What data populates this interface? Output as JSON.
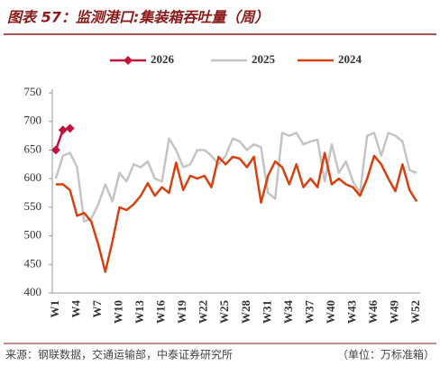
{
  "chart_data": {
    "type": "line",
    "title": "图表 57：监测港口:集装箱吞吐量（周）",
    "source": "来源：钢联数据，交通运输部，中泰证券研究所",
    "unit_note": "（单位：万标准箱）",
    "categories": [
      "W1",
      null,
      null,
      "W4",
      null,
      null,
      "W7",
      null,
      null,
      "W10",
      null,
      null,
      "W13",
      null,
      null,
      "W16",
      null,
      null,
      "W19",
      null,
      null,
      "W22",
      null,
      null,
      "W25",
      null,
      null,
      "W28",
      null,
      null,
      "W31",
      null,
      null,
      "W34",
      null,
      null,
      "W37",
      null,
      null,
      "W40",
      null,
      null,
      "W43",
      null,
      null,
      "W46",
      null,
      null,
      "W49",
      null,
      null,
      "W52"
    ],
    "series": [
      {
        "name": "2026",
        "color": "#c0143c",
        "marker": "diamond",
        "values": [
          650,
          685,
          688,
          null,
          null,
          null,
          null,
          null,
          null,
          null,
          null,
          null,
          null,
          null,
          null,
          null,
          null,
          null,
          null,
          null,
          null,
          null,
          null,
          null,
          null,
          null,
          null,
          null,
          null,
          null,
          null,
          null,
          null,
          null,
          null,
          null,
          null,
          null,
          null,
          null,
          null,
          null,
          null,
          null,
          null,
          null,
          null,
          null,
          null,
          null,
          null,
          null
        ]
      },
      {
        "name": "2025",
        "color": "#c4c4c4",
        "values": [
          600,
          640,
          645,
          620,
          525,
          530,
          555,
          590,
          560,
          610,
          595,
          625,
          620,
          630,
          600,
          595,
          670,
          650,
          620,
          625,
          650,
          650,
          640,
          625,
          640,
          670,
          665,
          650,
          660,
          655,
          575,
          565,
          680,
          675,
          680,
          660,
          665,
          668,
          595,
          660,
          610,
          630,
          595,
          575,
          675,
          680,
          640,
          680,
          675,
          665,
          615,
          610
        ]
      },
      {
        "name": "2024",
        "color": "#d9400f",
        "values": [
          590,
          590,
          580,
          535,
          540,
          525,
          485,
          437,
          490,
          550,
          545,
          555,
          570,
          592,
          570,
          585,
          575,
          628,
          580,
          605,
          600,
          605,
          585,
          638,
          625,
          638,
          635,
          620,
          638,
          558,
          605,
          630,
          620,
          590,
          625,
          585,
          600,
          585,
          645,
          590,
          600,
          590,
          585,
          570,
          600,
          640,
          625,
          600,
          578,
          625,
          580,
          560
        ]
      }
    ],
    "ylim": [
      400,
      750
    ],
    "yticks": [
      400,
      450,
      500,
      550,
      600,
      650,
      700,
      750
    ],
    "grid": false,
    "legend": "top"
  }
}
